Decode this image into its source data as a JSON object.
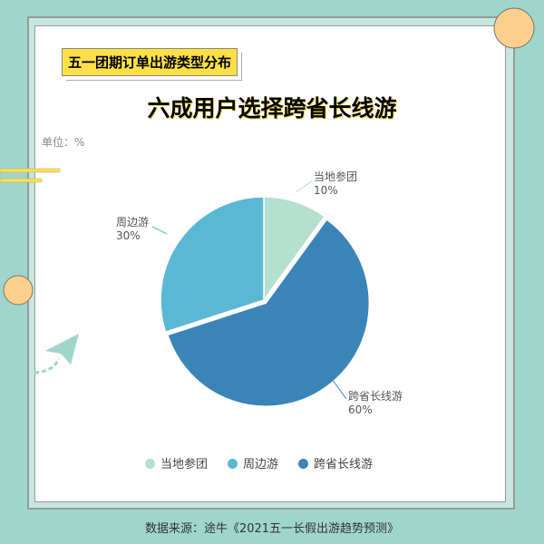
{
  "tag": "五一团期订单出游类型分布",
  "title": "六成用户选择跨省长线游",
  "unit": "单位：%",
  "source": "数据来源：途牛《2021五一长假出游趋势预测》",
  "chart_data": {
    "type": "pie",
    "categories": [
      "当地参团",
      "跨省长线游",
      "周边游"
    ],
    "values": [
      10,
      60,
      30
    ],
    "labels": [
      "10%",
      "60%",
      "30%"
    ],
    "colors": [
      "#b5dfcf",
      "#3a84b8",
      "#5bb8d4"
    ],
    "legend": "bottom"
  }
}
